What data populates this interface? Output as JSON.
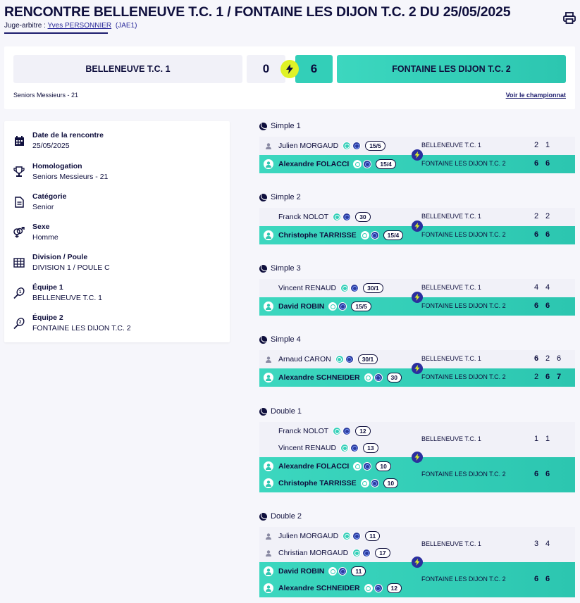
{
  "header": {
    "title": "RENCONTRE BELLENEUVE T.C. 1 / FONTAINE LES DIJON T.C. 2 DU 25/05/2025",
    "referee_label": "Juge-arbitre :",
    "referee_name": "Yves PERSONNIER",
    "referee_code": "(JAE1)"
  },
  "score": {
    "team1": "BELLENEUVE T.C. 1",
    "score1": "0",
    "score2": "6",
    "team2": "FONTAINE LES DIJON T.C. 2",
    "category": "Seniors Messieurs - 21",
    "championship_link": "Voir le championnat"
  },
  "info": [
    {
      "label": "Date de la rencontre",
      "value": "25/05/2025",
      "icon": "calendar-icon"
    },
    {
      "label": "Homologation",
      "value": "Seniors Messieurs - 21",
      "icon": "trophy-icon"
    },
    {
      "label": "Catégorie",
      "value": "Senior",
      "icon": "document-icon"
    },
    {
      "label": "Sexe",
      "value": "Homme",
      "icon": "gender-icon"
    },
    {
      "label": "Division / Poule",
      "value": "DIVISION 1 / POULE C",
      "icon": "grid-icon"
    },
    {
      "label": "Équipe 1",
      "value": "BELLENEUVE T.C. 1",
      "icon": "racket-1-icon"
    },
    {
      "label": "Équipe 2",
      "value": "FONTAINE LES DIJON T.C. 2",
      "icon": "racket-2-icon"
    }
  ],
  "matches": [
    {
      "title": "Simple 1",
      "team1": {
        "name": "BELLENEUVE T.C. 1",
        "players": [
          {
            "name": "Julien MORGAUD",
            "rank": "15/5",
            "avatar": "default"
          }
        ],
        "scores": [
          "2",
          "1"
        ],
        "wins": [
          false,
          false
        ]
      },
      "team2": {
        "name": "FONTAINE LES DIJON T.C. 2",
        "players": [
          {
            "name": "Alexandre FOLACCI",
            "rank": "15/4"
          }
        ],
        "scores": [
          "6",
          "6"
        ],
        "wins": [
          true,
          true
        ]
      }
    },
    {
      "title": "Simple 2",
      "team1": {
        "name": "BELLENEUVE T.C. 1",
        "players": [
          {
            "name": "Franck NOLOT",
            "rank": "30",
            "avatar": "photo"
          }
        ],
        "scores": [
          "2",
          "2"
        ],
        "wins": [
          false,
          false
        ]
      },
      "team2": {
        "name": "FONTAINE LES DIJON T.C. 2",
        "players": [
          {
            "name": "Christophe TARRISSE",
            "rank": "15/4"
          }
        ],
        "scores": [
          "6",
          "6"
        ],
        "wins": [
          true,
          true
        ]
      }
    },
    {
      "title": "Simple 3",
      "team1": {
        "name": "BELLENEUVE T.C. 1",
        "players": [
          {
            "name": "Vincent RENAUD",
            "rank": "30/1",
            "avatar": "photo2"
          }
        ],
        "scores": [
          "4",
          "4"
        ],
        "wins": [
          false,
          false
        ]
      },
      "team2": {
        "name": "FONTAINE LES DIJON T.C. 2",
        "players": [
          {
            "name": "David ROBIN",
            "rank": "15/5"
          }
        ],
        "scores": [
          "6",
          "6"
        ],
        "wins": [
          true,
          true
        ]
      }
    },
    {
      "title": "Simple 4",
      "team1": {
        "name": "BELLENEUVE T.C. 1",
        "players": [
          {
            "name": "Arnaud CARON",
            "rank": "30/1",
            "avatar": "default"
          }
        ],
        "scores": [
          "6",
          "2",
          "6"
        ],
        "wins": [
          true,
          false,
          false
        ]
      },
      "team2": {
        "name": "FONTAINE LES DIJON T.C. 2",
        "players": [
          {
            "name": "Alexandre SCHNEIDER",
            "rank": "30"
          }
        ],
        "scores": [
          "2",
          "6",
          "7"
        ],
        "wins": [
          false,
          true,
          true
        ]
      }
    },
    {
      "title": "Double 1",
      "team1": {
        "name": "BELLENEUVE T.C. 1",
        "players": [
          {
            "name": "Franck NOLOT",
            "rank": "12",
            "avatar": "photo"
          },
          {
            "name": "Vincent RENAUD",
            "rank": "13",
            "avatar": "photo2"
          }
        ],
        "scores": [
          "1",
          "1"
        ],
        "wins": [
          false,
          false
        ]
      },
      "team2": {
        "name": "FONTAINE LES DIJON T.C. 2",
        "players": [
          {
            "name": "Alexandre FOLACCI",
            "rank": "10"
          },
          {
            "name": "Christophe TARRISSE",
            "rank": "10"
          }
        ],
        "scores": [
          "6",
          "6"
        ],
        "wins": [
          true,
          true
        ]
      }
    },
    {
      "title": "Double 2",
      "team1": {
        "name": "BELLENEUVE T.C. 1",
        "players": [
          {
            "name": "Julien MORGAUD",
            "rank": "11",
            "avatar": "default"
          },
          {
            "name": "Christian MORGAUD",
            "rank": "17",
            "avatar": "default"
          }
        ],
        "scores": [
          "3",
          "4"
        ],
        "wins": [
          false,
          false
        ]
      },
      "team2": {
        "name": "FONTAINE LES DIJON T.C. 2",
        "players": [
          {
            "name": "David ROBIN",
            "rank": "11"
          },
          {
            "name": "Alexandre SCHNEIDER",
            "rank": "12"
          }
        ],
        "scores": [
          "6",
          "6"
        ],
        "wins": [
          true,
          true
        ]
      }
    }
  ]
}
